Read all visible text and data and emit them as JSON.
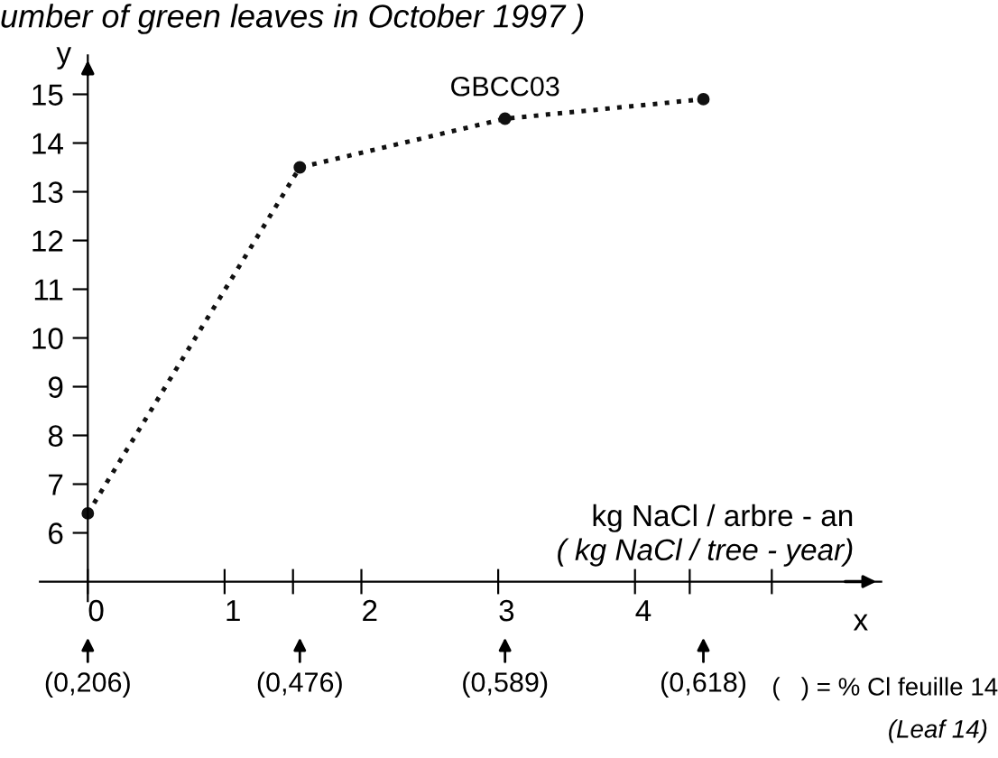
{
  "chart_data": {
    "type": "line",
    "title": "umber of green leaves in October 1997 )",
    "xlabel": "x",
    "ylabel": "y",
    "series": [
      {
        "name": "GBCC03",
        "color": "#111111",
        "x": [
          0,
          1.55,
          3.05,
          4.5
        ],
        "values": [
          6.4,
          13.5,
          14.5,
          14.9
        ]
      }
    ],
    "xlim": [
      -0.35,
      5.8
    ],
    "ylim": [
      4.6,
      15.8
    ],
    "xticks": [
      0,
      1,
      {
        "value": 1.5,
        "label": null
      },
      2,
      3,
      4,
      {
        "value": 4.4,
        "label": null
      },
      {
        "value": 5,
        "label": null
      }
    ],
    "yticks": [
      6,
      7,
      8,
      9,
      10,
      11,
      12,
      13,
      14,
      15
    ],
    "marker": "circle",
    "line_style": "dotted",
    "grid": false,
    "legend": false,
    "annotations": [
      "(0,206)",
      "(0,476)",
      "(0,589)",
      "(0,618)",
      "kg NaCl / arbre - an",
      "( kg NaCl / tree - year)",
      "(   ) = % Cl feuille 14",
      "(Leaf 14)"
    ]
  }
}
